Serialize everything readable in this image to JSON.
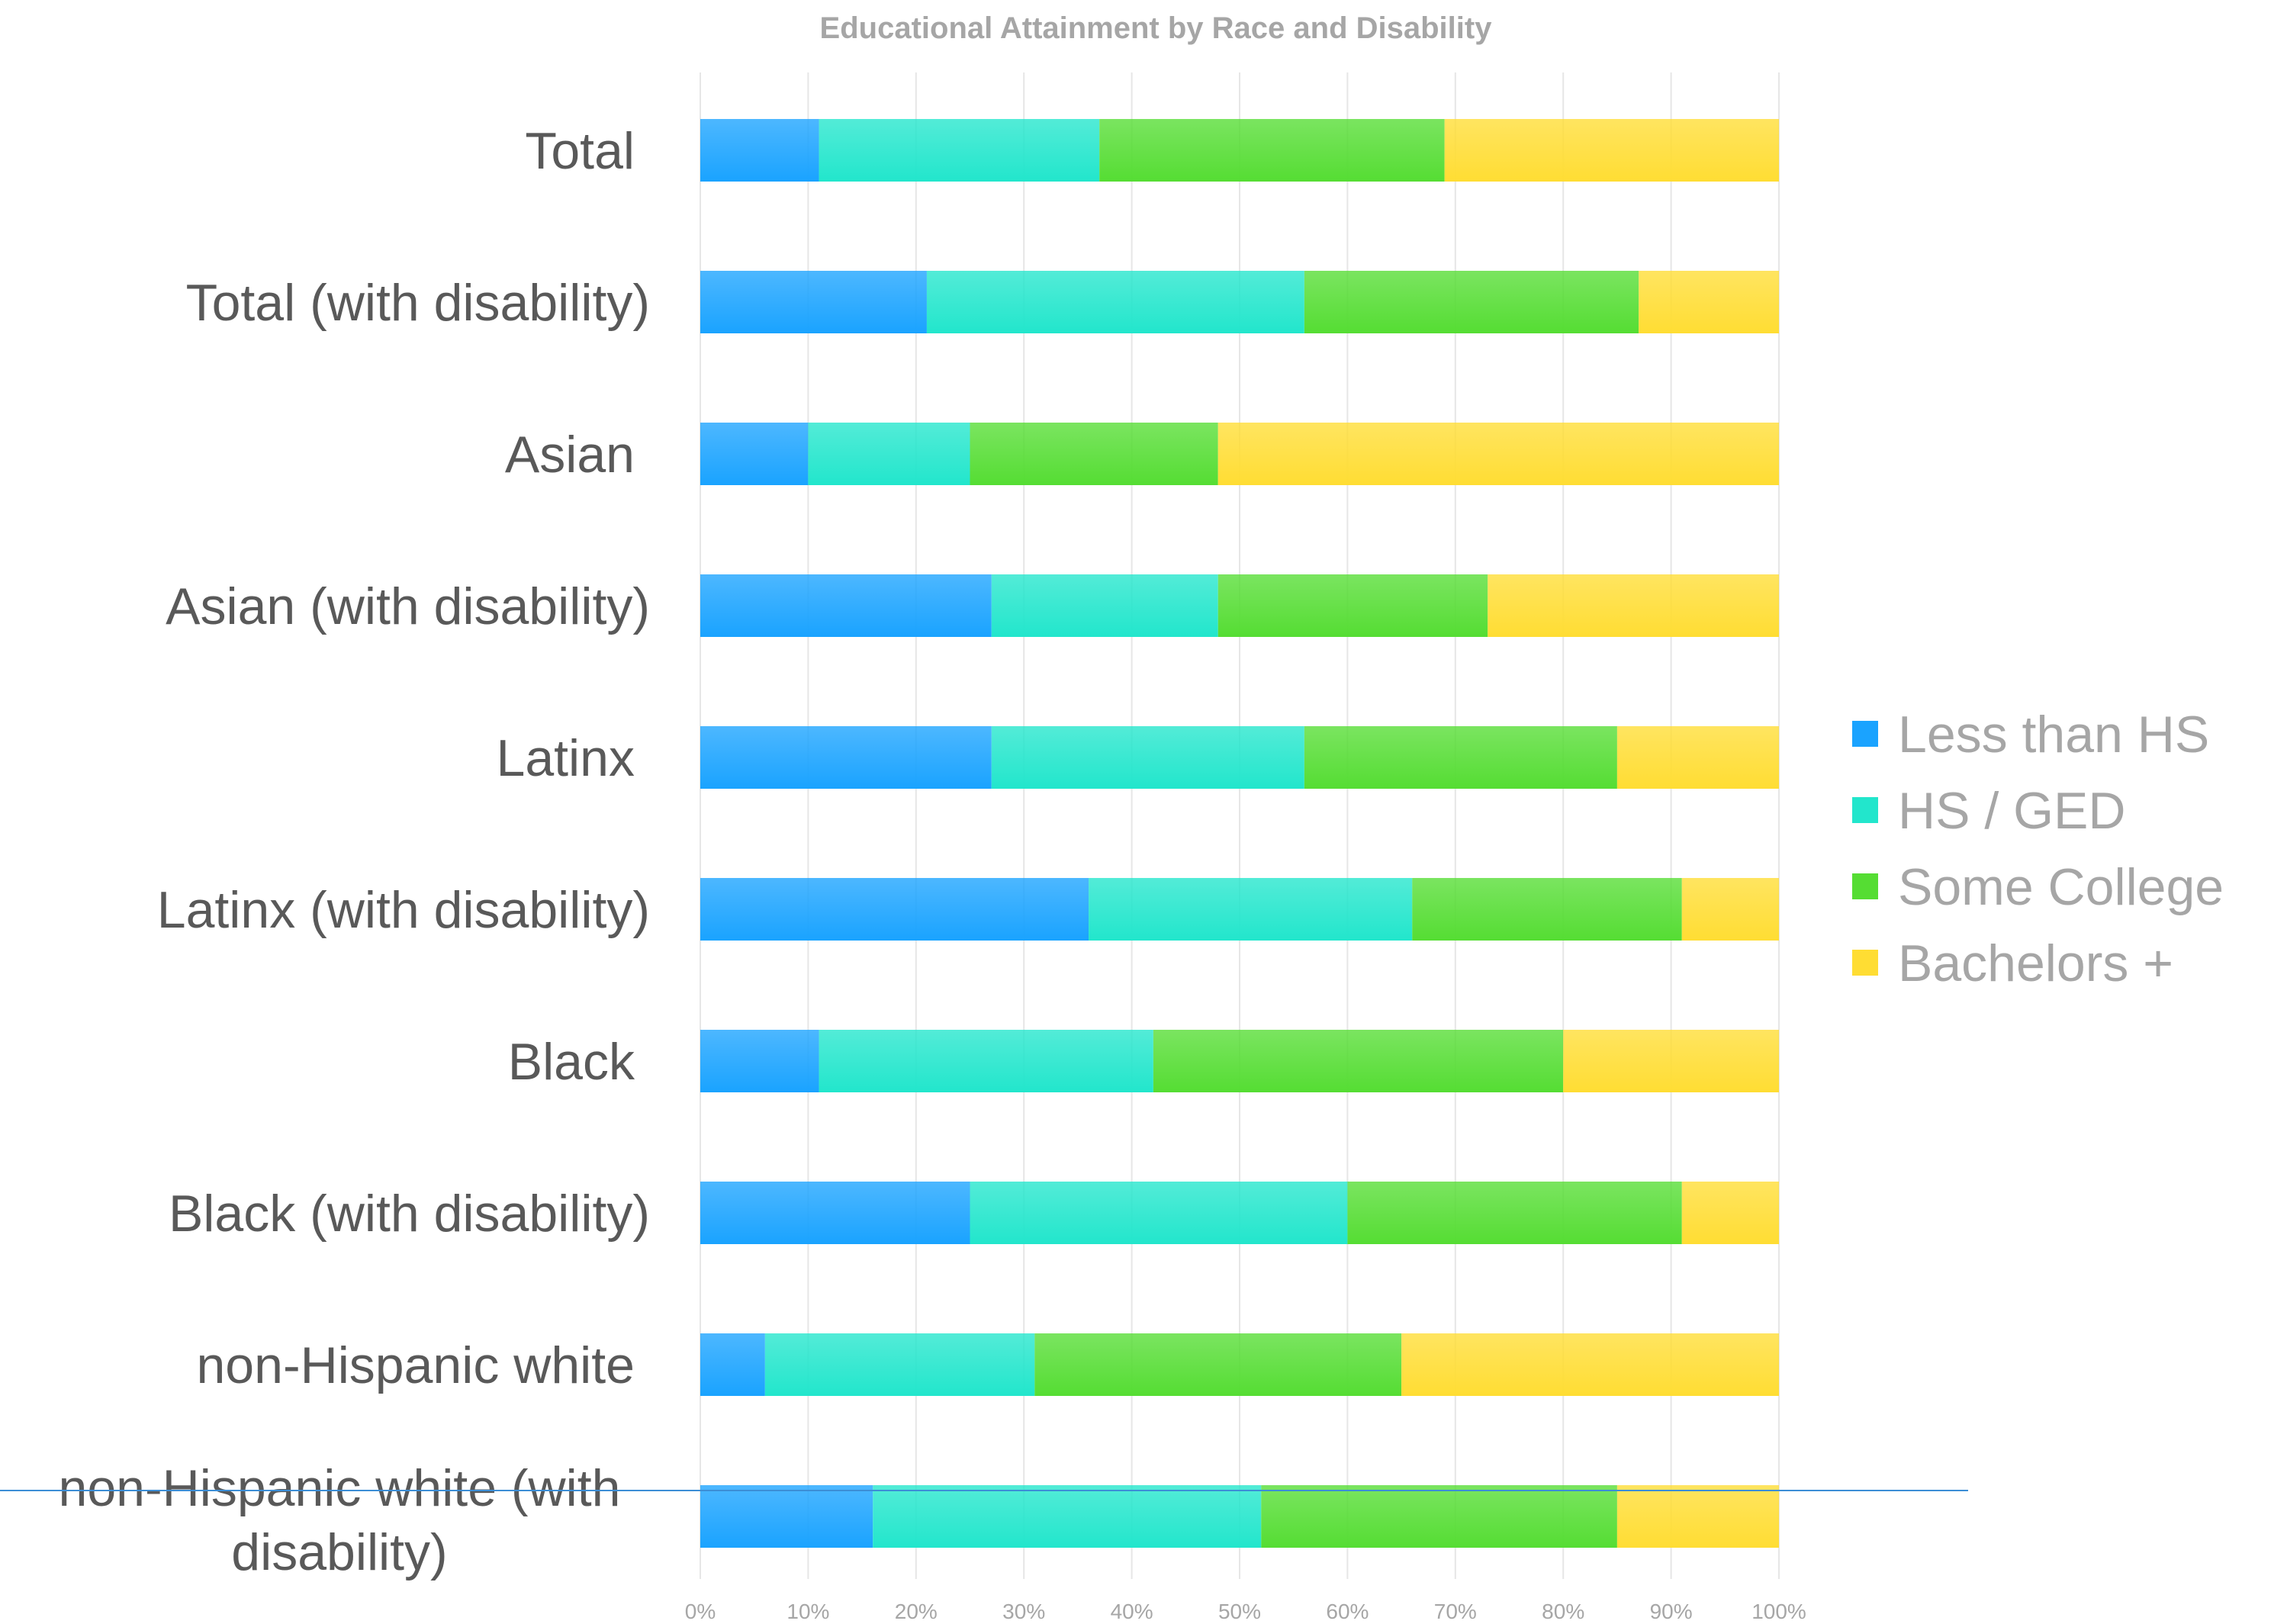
{
  "chart_data": {
    "type": "bar",
    "orientation": "horizontal",
    "stacked": "percent",
    "title": "Educational Attainment by Race and Disability",
    "categories": [
      "Total",
      "Total (with disability)",
      "Asian",
      "Asian (with disability)",
      "Latinx",
      "Latinx (with disability)",
      "Black",
      "Black (with disability)",
      "non-Hispanic white",
      "non-Hispanic white (with disability)"
    ],
    "series": [
      {
        "name": "Less than HS",
        "color": "#1aa3ff",
        "values": [
          11,
          21,
          10,
          27,
          27,
          36,
          11,
          25,
          6,
          16
        ]
      },
      {
        "name": "HS / GED",
        "color": "#22e6cc",
        "values": [
          26,
          35,
          15,
          21,
          29,
          30,
          31,
          35,
          25,
          36
        ]
      },
      {
        "name": "Some College",
        "color": "#55dd33",
        "values": [
          32,
          31,
          23,
          25,
          29,
          25,
          38,
          31,
          34,
          33
        ]
      },
      {
        "name": "Bachelors +",
        "color": "#ffdd33",
        "values": [
          31,
          13,
          52,
          27,
          15,
          9,
          20,
          9,
          35,
          15
        ]
      }
    ],
    "xlim": [
      0,
      100
    ],
    "xticks": [
      "0%",
      "10%",
      "20%",
      "30%",
      "40%",
      "50%",
      "60%",
      "70%",
      "80%",
      "90%",
      "100%"
    ],
    "grid": true,
    "legend": "right"
  }
}
